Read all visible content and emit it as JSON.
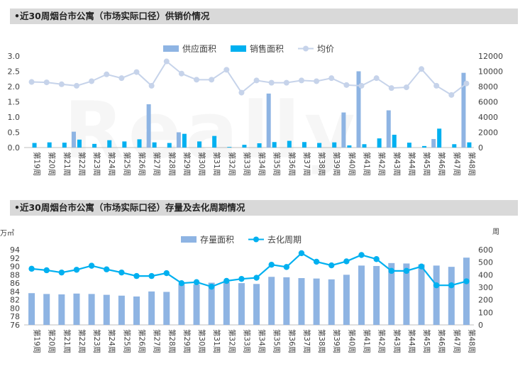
{
  "chart_data": [
    {
      "type": "bar+line",
      "title": "•近30周烟台市公寓（市场实际口径）供销价情况",
      "categories": [
        "第19周",
        "第20周",
        "第21周",
        "第22周",
        "第23周",
        "第24周",
        "第25周",
        "第26周",
        "第27周",
        "第28周",
        "第29周",
        "第30周",
        "第31周",
        "第32周",
        "第33周",
        "第34周",
        "第35周",
        "第36周",
        "第37周",
        "第38周",
        "第39周",
        "第40周",
        "第41周",
        "第42周",
        "第43周",
        "第44周",
        "第45周",
        "第46周",
        "第47周",
        "第48周"
      ],
      "series": [
        {
          "name": "供应面积",
          "type": "bar",
          "axis": "left",
          "color": "#8eb4e3",
          "values": [
            0,
            0,
            0,
            0.52,
            0,
            0,
            0,
            0,
            1.42,
            0,
            0.5,
            0,
            0,
            0,
            0,
            0,
            1.77,
            0,
            0,
            0,
            0,
            1.15,
            2.5,
            0,
            1.22,
            0,
            0,
            0.28,
            0,
            2.45
          ]
        },
        {
          "name": "销售面积",
          "type": "bar",
          "axis": "left",
          "color": "#00b0f0",
          "values": [
            0.15,
            0.17,
            0.16,
            0.26,
            0.12,
            0.24,
            0.2,
            0.27,
            0.17,
            0.15,
            0.45,
            0.2,
            0.38,
            0.02,
            0.09,
            0.14,
            0.18,
            0.22,
            0.18,
            0.15,
            0.17,
            0.07,
            0.11,
            0.3,
            0.42,
            0.16,
            0.05,
            0.62,
            0.11,
            0.17
          ]
        },
        {
          "name": "均价",
          "type": "line",
          "axis": "right",
          "color": "#c6d3ea",
          "values": [
            8600,
            8550,
            8300,
            8100,
            8700,
            9600,
            9100,
            9900,
            8100,
            11300,
            9700,
            8900,
            8900,
            10200,
            7200,
            8800,
            8500,
            8500,
            8800,
            8700,
            9100,
            8200,
            8100,
            9100,
            7800,
            7900,
            10300,
            8100,
            6900,
            8400
          ]
        }
      ],
      "ylim_left": [
        0,
        3.0
      ],
      "yticks_left": [
        "0.0",
        "0.5",
        "1.0",
        "1.5",
        "2.0",
        "2.5",
        "3.0"
      ],
      "ylim_right": [
        0,
        12000
      ],
      "yticks_right": [
        "0",
        "2000",
        "4000",
        "6000",
        "8000",
        "10000",
        "12000"
      ],
      "legend_position": "top-center",
      "grid": false
    },
    {
      "type": "bar+line",
      "title": "•近30周烟台市公寓（市场实际口径）存量及去化周期情况",
      "left_unit": "万㎡",
      "right_unit": "周",
      "categories": [
        "第19周",
        "第20周",
        "第21周",
        "第22周",
        "第23周",
        "第24周",
        "第25周",
        "第26周",
        "第27周",
        "第28周",
        "第29周",
        "第30周",
        "第31周",
        "第32周",
        "第33周",
        "第34周",
        "第35周",
        "第36周",
        "第37周",
        "第38周",
        "第39周",
        "第40周",
        "第41周",
        "第42周",
        "第43周",
        "第44周",
        "第45周",
        "第46周",
        "第47周",
        "第48周"
      ],
      "series": [
        {
          "name": "存量面积",
          "type": "bar",
          "axis": "left",
          "color": "#8eb4e3",
          "values": [
            83.6,
            83.4,
            83.3,
            83.5,
            83.4,
            83.2,
            83.0,
            82.8,
            84.0,
            83.9,
            85.8,
            85.7,
            86.1,
            86.2,
            86.0,
            85.8,
            87.5,
            87.4,
            87.2,
            87.1,
            86.9,
            88.0,
            90.2,
            90.1,
            90.8,
            90.7,
            90.5,
            90.2,
            89.9,
            92.1
          ]
        },
        {
          "name": "去化周期",
          "type": "line",
          "axis": "right",
          "color": "#00b0f0",
          "values": [
            448,
            436,
            418,
            440,
            472,
            443,
            418,
            390,
            390,
            413,
            333,
            341,
            305,
            351,
            367,
            376,
            480,
            462,
            572,
            504,
            475,
            507,
            558,
            525,
            431,
            431,
            466,
            316,
            316,
            348
          ]
        }
      ],
      "ylim_left": [
        76,
        94
      ],
      "yticks_left": [
        "76",
        "78",
        "80",
        "82",
        "84",
        "86",
        "88",
        "90",
        "92",
        "94"
      ],
      "ylim_right": [
        0,
        600
      ],
      "yticks_right": [
        "0",
        "100",
        "200",
        "300",
        "400",
        "500",
        "600"
      ],
      "legend_position": "top-center",
      "grid": false
    }
  ]
}
